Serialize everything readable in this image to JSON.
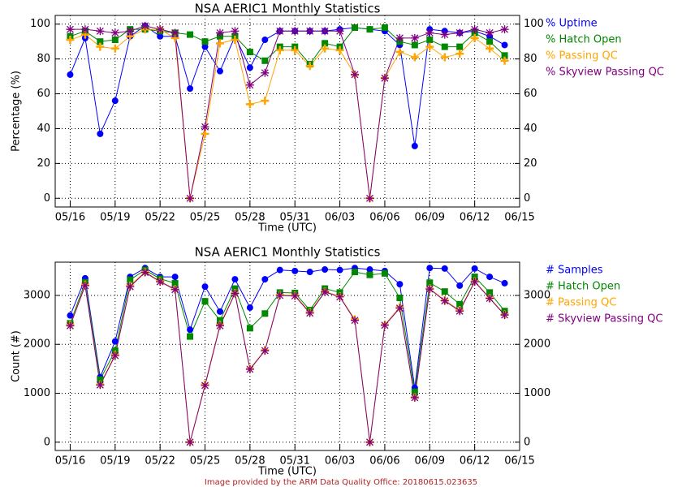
{
  "chart_data": [
    {
      "type": "line",
      "title": "NSA AERIC1 Monthly Statistics",
      "xlabel": "Time (UTC)",
      "ylabel": "Percentage (%)",
      "x": [
        "05/16",
        "05/17",
        "05/18",
        "05/19",
        "05/20",
        "05/21",
        "05/22",
        "05/23",
        "05/24",
        "05/25",
        "05/26",
        "05/27",
        "05/28",
        "05/29",
        "05/30",
        "05/31",
        "06/01",
        "06/02",
        "06/03",
        "06/04",
        "06/05",
        "06/06",
        "06/07",
        "06/08",
        "06/09",
        "06/10",
        "06/11",
        "06/12",
        "06/13",
        "06/14"
      ],
      "xlim": [
        "05/15",
        "06/15"
      ],
      "xticks": [
        "05/16",
        "05/19",
        "05/22",
        "05/25",
        "05/28",
        "05/31",
        "06/03",
        "06/06",
        "06/09",
        "06/12",
        "06/15"
      ],
      "ylim": [
        -5,
        105
      ],
      "yticks": [
        0,
        20,
        40,
        60,
        80,
        100
      ],
      "y2ticks": [
        0,
        20,
        40,
        60,
        80,
        100
      ],
      "grid": true,
      "series": [
        {
          "name": "% Uptime",
          "color": "#0000ff",
          "marker": "circle",
          "values": [
            71,
            92,
            37,
            56,
            93,
            99,
            93,
            93,
            63,
            87,
            73,
            93,
            75,
            91,
            96,
            96,
            96,
            96,
            97,
            98,
            97,
            96,
            88,
            30,
            97,
            96,
            95,
            96,
            93,
            88
          ]
        },
        {
          "name": "% Hatch Open",
          "color": "#008800",
          "marker": "square",
          "values": [
            93,
            96,
            90,
            91,
            97,
            97,
            96,
            95,
            94,
            90,
            93,
            93,
            84,
            79,
            87,
            87,
            77,
            89,
            87,
            98,
            97,
            98,
            90,
            88,
            91,
            87,
            87,
            95,
            90,
            82
          ]
        },
        {
          "name": "% Passing QC",
          "color": "#ffa500",
          "marker": "plus",
          "values": [
            91,
            94,
            87,
            86,
            93,
            97,
            97,
            92,
            0,
            37,
            89,
            91,
            54,
            56,
            85,
            85,
            76,
            86,
            85,
            71,
            0,
            69,
            84,
            81,
            87,
            81,
            83,
            92,
            86,
            79
          ]
        },
        {
          "name": "% Skyview Passing QC",
          "color": "#800080",
          "marker": "star",
          "values": [
            97,
            97,
            96,
            95,
            96,
            99,
            97,
            95,
            0,
            41,
            95,
            96,
            65,
            72,
            96,
            96,
            96,
            96,
            96,
            71,
            0,
            69,
            92,
            92,
            95,
            94,
            95,
            97,
            95,
            97
          ]
        }
      ]
    },
    {
      "type": "line",
      "title": "NSA AERIC1 Monthly Statistics",
      "xlabel": "Time (UTC)",
      "ylabel": "Count (#)",
      "x": [
        "05/16",
        "05/17",
        "05/18",
        "05/19",
        "05/20",
        "05/21",
        "05/22",
        "05/23",
        "05/24",
        "05/25",
        "05/26",
        "05/27",
        "05/28",
        "05/29",
        "05/30",
        "05/31",
        "06/01",
        "06/02",
        "06/03",
        "06/04",
        "06/05",
        "06/06",
        "06/07",
        "06/08",
        "06/09",
        "06/10",
        "06/11",
        "06/12",
        "06/13",
        "06/14"
      ],
      "xlim": [
        "05/15",
        "06/15"
      ],
      "xticks": [
        "05/16",
        "05/19",
        "05/22",
        "05/25",
        "05/28",
        "05/31",
        "06/03",
        "06/06",
        "06/09",
        "06/12",
        "06/15"
      ],
      "ylim": [
        -170,
        3680
      ],
      "yticks": [
        0,
        1000,
        2000,
        3000
      ],
      "y2ticks": [
        0,
        1000,
        2000,
        3000
      ],
      "grid": true,
      "series": [
        {
          "name": "# Samples",
          "color": "#0000ff",
          "marker": "circle",
          "values": [
            2590,
            3350,
            1330,
            2060,
            3380,
            3560,
            3380,
            3380,
            2300,
            3180,
            2670,
            3330,
            2750,
            3330,
            3520,
            3500,
            3480,
            3530,
            3520,
            3560,
            3530,
            3500,
            3230,
            1110,
            3560,
            3550,
            3200,
            3550,
            3380,
            3250
          ]
        },
        {
          "name": "# Hatch Open",
          "color": "#008800",
          "marker": "square",
          "values": [
            2430,
            3270,
            1280,
            1870,
            3320,
            3520,
            3340,
            3250,
            2160,
            2880,
            2490,
            3140,
            2330,
            2630,
            3060,
            3050,
            2700,
            3140,
            3060,
            3480,
            3420,
            3450,
            2950,
            1030,
            3260,
            3080,
            2820,
            3380,
            3060,
            2680
          ]
        },
        {
          "name": "# Passing QC",
          "color": "#ffa500",
          "marker": "plus",
          "values": [
            2400,
            3220,
            1180,
            1790,
            3200,
            3480,
            3290,
            3130,
            0,
            1180,
            2400,
            3050,
            1500,
            1880,
            3010,
            3000,
            2660,
            3080,
            2980,
            2510,
            0,
            2400,
            2760,
            920,
            3140,
            2900,
            2700,
            3290,
            2950,
            2610
          ]
        },
        {
          "name": "# Skyview Passing QC",
          "color": "#800080",
          "marker": "star",
          "values": [
            2380,
            3200,
            1170,
            1770,
            3180,
            3470,
            3280,
            3120,
            0,
            1160,
            2380,
            3040,
            1490,
            1870,
            3000,
            2990,
            2640,
            3070,
            2970,
            2490,
            0,
            2390,
            2740,
            910,
            3130,
            2890,
            2680,
            3280,
            2940,
            2600
          ]
        }
      ]
    }
  ],
  "footer": "Image provided by the ARM Data Quality Office: 20180615.023635"
}
